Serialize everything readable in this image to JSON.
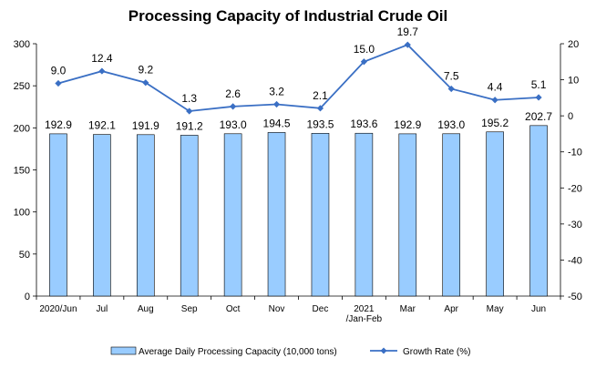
{
  "chart_data": {
    "type": "bar",
    "title": "Processing Capacity of Industrial Crude Oil",
    "categories": [
      [
        "2020/Jun"
      ],
      [
        "Jul"
      ],
      [
        "Aug"
      ],
      [
        "Sep"
      ],
      [
        "Oct"
      ],
      [
        "Nov"
      ],
      [
        "Dec"
      ],
      [
        "2021",
        "/Jan-Feb"
      ],
      [
        "Mar"
      ],
      [
        "Apr"
      ],
      [
        "May"
      ],
      [
        "Jun"
      ]
    ],
    "series": [
      {
        "name": "Average Daily Processing Capacity (10,000 tons)",
        "type": "bar",
        "axis": "left",
        "color": "#99ccff",
        "values": [
          192.9,
          192.1,
          191.9,
          191.2,
          193.0,
          194.5,
          193.5,
          193.6,
          192.9,
          193.0,
          195.2,
          202.7
        ],
        "labels": [
          "192.9",
          "192.1",
          "191.9",
          "191.2",
          "193.0",
          "194.5",
          "193.5",
          "193.6",
          "192.9",
          "193.0",
          "195.2",
          "202.7"
        ]
      },
      {
        "name": "Growth Rate (%)",
        "type": "line",
        "axis": "right",
        "color": "#3a6fc4",
        "values": [
          9.0,
          12.4,
          9.2,
          1.3,
          2.6,
          3.2,
          2.1,
          15.0,
          19.7,
          7.5,
          4.4,
          5.1
        ],
        "labels": [
          "9.0",
          "12.4",
          "9.2",
          "1.3",
          "2.6",
          "3.2",
          "2.1",
          "15.0",
          "19.7",
          "7.5",
          "4.4",
          "5.1"
        ]
      }
    ],
    "y_left": {
      "range": [
        0,
        300
      ],
      "ticks": [
        "0",
        "50",
        "100",
        "150",
        "200",
        "250",
        "300"
      ]
    },
    "y_right": {
      "range": [
        -50,
        20
      ],
      "ticks": [
        "-50",
        "-40",
        "-30",
        "-20",
        "-10",
        "0",
        "10",
        "20"
      ]
    },
    "grid": false,
    "legend_position": "bottom"
  }
}
